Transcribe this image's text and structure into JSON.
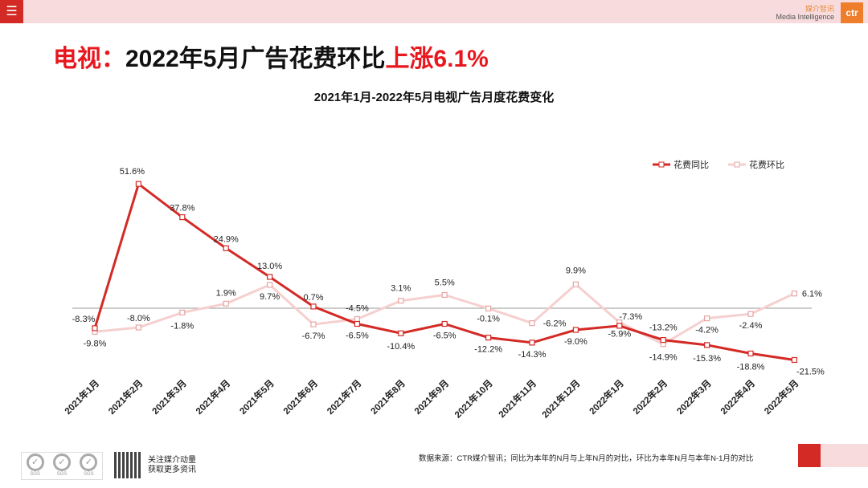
{
  "header": {
    "menu_icon": "hamburger-icon",
    "brand_cn": "媒介智讯",
    "brand_en": "Media Intelligence",
    "logo_text": "ctr"
  },
  "title": {
    "prefix": "电视：",
    "main": "2022年5月广告花费环比",
    "highlight": "上涨6.1%"
  },
  "colors": {
    "yoy": "#d42a25",
    "mom": "#f6cfcf",
    "accent": "#e8171e"
  },
  "chart_data": {
    "type": "line",
    "title": "2021年1月-2022年5月电视广告月度花费变化",
    "categories": [
      "2021年1月",
      "2021年2月",
      "2021年3月",
      "2021年4月",
      "2021年5月",
      "2021年6月",
      "2021年7月",
      "2021年8月",
      "2021年9月",
      "2021年10月",
      "2021年11月",
      "2021年12月",
      "2022年1月",
      "2022年2月",
      "2022年3月",
      "2022年4月",
      "2022年5月"
    ],
    "series": [
      {
        "name": "花费同比",
        "values": [
          -8.3,
          51.6,
          37.8,
          24.9,
          13.0,
          0.7,
          -6.5,
          -10.4,
          -6.5,
          -12.2,
          -14.3,
          -9.0,
          -7.3,
          -13.2,
          -15.3,
          -18.8,
          -21.5
        ],
        "labels": [
          "-8.3%",
          "51.6%",
          "37.8%",
          "24.9%",
          "13.0%",
          "0.7%",
          "-6.5%",
          "-10.4%",
          "-6.5%",
          "-12.2%",
          "-14.3%",
          "-9.0%",
          "-7.3%",
          "-13.2%",
          "-15.3%",
          "-18.8%",
          "-21.5%"
        ]
      },
      {
        "name": "花费环比",
        "values": [
          -9.8,
          -8.0,
          -1.8,
          1.9,
          9.7,
          -6.7,
          -4.5,
          3.1,
          5.5,
          -0.1,
          -6.2,
          9.9,
          -5.9,
          -14.9,
          -4.2,
          -2.4,
          6.1
        ],
        "labels": [
          "-9.8%",
          "-8.0%",
          "-1.8%",
          "1.9%",
          "9.7%",
          "-6.7%",
          "-4.5%",
          "3.1%",
          "5.5%",
          "-0.1%",
          "-6.2%",
          "9.9%",
          "-5.9%",
          "-14.9%",
          "-4.2%",
          "-2.4%",
          "6.1%"
        ]
      }
    ],
    "legend": "top-right",
    "grid": false
  },
  "footer": {
    "follow_line1": "关注媒介动量",
    "follow_line2": "获取更多资讯",
    "source": "数据来源：CTR媒介智讯；同比为本年的N月与上年N月的对比，环比为本年N月与本年N-1月的对比",
    "cert_label": "SGS"
  }
}
